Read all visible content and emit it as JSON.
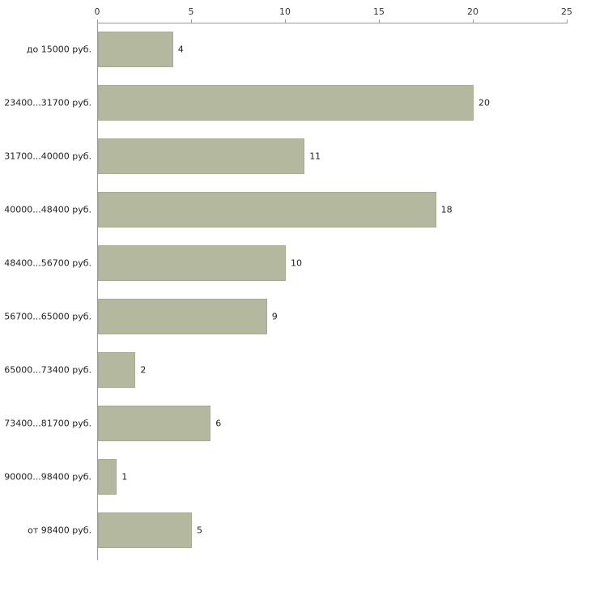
{
  "chart_data": {
    "type": "bar",
    "orientation": "horizontal",
    "title": "",
    "xlabel": "",
    "ylabel": "",
    "categories": [
      "до 15000 руб.",
      "23400...31700 руб.",
      "31700...40000 руб.",
      "40000...48400 руб.",
      "48400...56700 руб.",
      "56700...65000 руб.",
      "65000...73400 руб.",
      "73400...81700 руб.",
      "90000...98400 руб.",
      "от 98400 руб."
    ],
    "values": [
      4,
      20,
      11,
      18,
      10,
      9,
      2,
      6,
      1,
      5
    ],
    "xlim": [
      0,
      25
    ],
    "x_ticks": [
      0,
      5,
      10,
      15,
      20,
      25
    ],
    "grid": false,
    "legend": "none",
    "bar_color": "#b3b89f",
    "bar_border_color": "#a6ac8e",
    "axis_color": "#9a9a9a",
    "text_color": "#222222"
  }
}
